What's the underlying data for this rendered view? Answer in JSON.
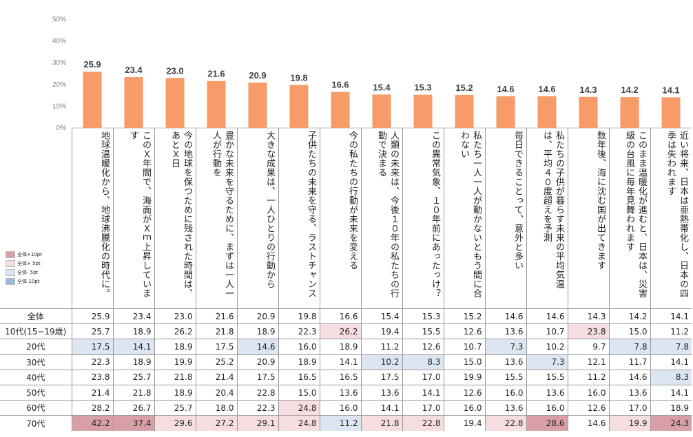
{
  "colors": {
    "bar": "#F79B68",
    "hi10": "#D8A0A6",
    "hi5": "#F5DDE0",
    "lo5": "#DCE6F2",
    "lo10": "#9DB8DC"
  },
  "legend": [
    {
      "label": "全体+10pt",
      "color": "#D8A0A6"
    },
    {
      "label": "全体+ 5pt",
      "color": "#F5DDE0"
    },
    {
      "label": "全体- 5pt",
      "color": "#DCE6F2"
    },
    {
      "label": "全体-10pt",
      "color": "#9DB8DC"
    }
  ],
  "chart_data": {
    "type": "bar",
    "ylim": [
      0,
      50
    ],
    "yticks": [
      "0%",
      "10%",
      "20%",
      "30%",
      "40%",
      "50%"
    ],
    "categories": [
      "地球温暖化から、地球沸騰化の時代に。",
      "このＸ年間で、海面がＸｍ上昇しています",
      "今の地球を保つために残された時間は、あとＸ日",
      "豊かな未来を守るために、まずは一人一人が行動を",
      "大きな成果は、一人ひとりの行動から",
      "子供たちの未来を守る、ラストチャンス",
      "今の私たちの行動が未来を変える",
      "人類の未来は、今後１０年の私たちの行動で決まる",
      "この異常気象、１０年前にあったっけ？",
      "私たち一人一人が動かないともう間に合わない",
      "毎日できることって、意外と多い",
      "私たちの子供が暮らす未来の平均気温は、平均４０度超えを予測",
      "数年後、海に沈む国が出てきます",
      "このまま温暖化が進むと、日本は、災害級の台風に毎年見舞われます",
      "近い将来、日本は亜熱帯化し、日本の四季は失われます"
    ],
    "values": [
      25.9,
      23.4,
      23.0,
      21.6,
      20.9,
      19.8,
      16.6,
      15.4,
      15.3,
      15.2,
      14.6,
      14.6,
      14.3,
      14.2,
      14.1
    ],
    "value_labels": [
      "25.9",
      "23.4",
      "23.0",
      "21.6",
      "20.9",
      "19.8",
      "16.6",
      "15.4",
      "15.3",
      "15.2",
      "14.6",
      "14.6",
      "14.3",
      "14.2",
      "14.1"
    ],
    "table": {
      "rows": [
        {
          "label": "全体",
          "values": [
            25.9,
            23.4,
            23.0,
            21.6,
            20.9,
            19.8,
            16.6,
            15.4,
            15.3,
            15.2,
            14.6,
            14.6,
            14.3,
            14.2,
            14.1
          ]
        },
        {
          "label": "10代(15−19歳)",
          "values": [
            25.7,
            18.9,
            26.2,
            21.8,
            18.9,
            22.3,
            26.2,
            19.4,
            15.5,
            12.6,
            13.6,
            10.7,
            23.8,
            15.0,
            11.2
          ]
        },
        {
          "label": "20代",
          "values": [
            17.5,
            14.1,
            18.9,
            17.5,
            14.6,
            16.0,
            18.9,
            11.2,
            12.6,
            10.7,
            7.3,
            10.2,
            9.7,
            7.8,
            7.8
          ]
        },
        {
          "label": "30代",
          "values": [
            22.3,
            18.9,
            19.9,
            25.2,
            20.9,
            18.9,
            14.1,
            10.2,
            8.3,
            15.0,
            13.6,
            7.3,
            12.1,
            11.7,
            14.1
          ]
        },
        {
          "label": "40代",
          "values": [
            23.8,
            25.7,
            21.8,
            21.4,
            17.5,
            16.5,
            16.5,
            17.5,
            17.0,
            19.9,
            15.5,
            15.5,
            11.2,
            14.6,
            8.3
          ]
        },
        {
          "label": "50代",
          "values": [
            21.4,
            21.8,
            18.9,
            20.4,
            22.8,
            15.0,
            13.6,
            13.6,
            14.1,
            12.6,
            16.0,
            13.6,
            16.0,
            13.6,
            14.1
          ]
        },
        {
          "label": "60代",
          "values": [
            28.2,
            26.7,
            25.7,
            18.0,
            22.3,
            24.8,
            16.0,
            14.1,
            17.0,
            16.0,
            13.6,
            16.0,
            12.6,
            17.0,
            18.9
          ]
        },
        {
          "label": "70代",
          "values": [
            42.2,
            37.4,
            29.6,
            27.2,
            29.1,
            24.8,
            11.2,
            21.8,
            22.8,
            19.4,
            22.8,
            28.6,
            14.6,
            19.9,
            24.3
          ]
        }
      ]
    }
  }
}
